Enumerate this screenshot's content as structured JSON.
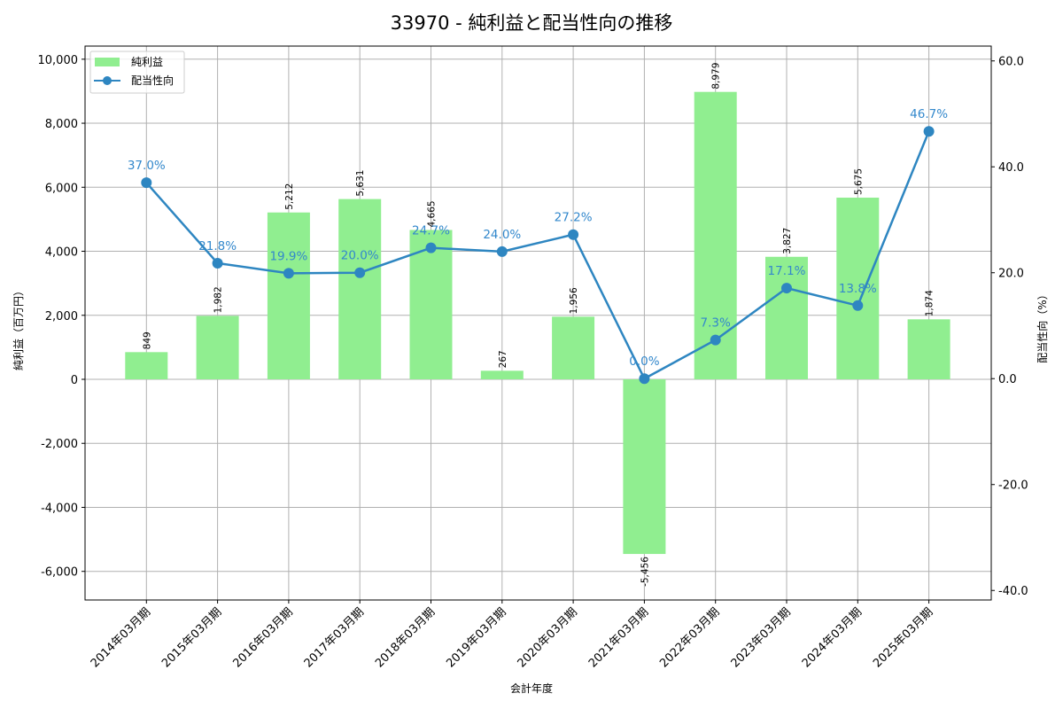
{
  "chart_data": {
    "type": "bar+line",
    "title": "33970 - 純利益と配当性向の推移",
    "xlabel": "会計年度",
    "ylabel": "純利益（百万円）",
    "y2label": "配当性向（%）",
    "categories": [
      "2014年03月期",
      "2015年03月期",
      "2016年03月期",
      "2017年03月期",
      "2018年03月期",
      "2019年03月期",
      "2020年03月期",
      "2021年03月期",
      "2022年03月期",
      "2023年03月期",
      "2024年03月期",
      "2025年03月期"
    ],
    "series": [
      {
        "name": "純利益",
        "type": "bar",
        "axis": "left",
        "color": "#90ee90",
        "values": [
          849,
          1982,
          5212,
          5631,
          4665,
          267,
          1956,
          -5456,
          8979,
          3827,
          5675,
          1874
        ],
        "labels": [
          "849",
          "1,982",
          "5,212",
          "5,631",
          "4,665",
          "267",
          "1,956",
          "-5,456",
          "8,979",
          "3,827",
          "5,675",
          "1,874"
        ]
      },
      {
        "name": "配当性向",
        "type": "line",
        "axis": "right",
        "color": "#2e86c1",
        "values": [
          37.0,
          21.8,
          19.9,
          20.0,
          24.7,
          24.0,
          27.2,
          0.0,
          7.3,
          17.1,
          13.8,
          46.7
        ],
        "labels": [
          "37.0%",
          "21.8%",
          "19.9%",
          "20.0%",
          "24.7%",
          "24.0%",
          "27.2%",
          "0.0%",
          "7.3%",
          "17.1%",
          "13.8%",
          "46.7%"
        ]
      }
    ],
    "ylim": [
      -6894,
      10410
    ],
    "y2lim": [
      -41.8,
      62.8
    ],
    "yticks": [
      -6000,
      -4000,
      -2000,
      0,
      2000,
      4000,
      6000,
      8000,
      10000
    ],
    "ytick_labels": [
      "-6,000",
      "-4,000",
      "-2,000",
      "0",
      "2,000",
      "4,000",
      "6,000",
      "8,000",
      "10,000"
    ],
    "y2ticks": [
      -40,
      -20,
      0,
      20,
      40,
      60
    ],
    "y2tick_labels": [
      "-40.0",
      "-20.0",
      "0.0",
      "20.0",
      "40.0",
      "60.0"
    ],
    "grid": true,
    "legend_position": "upper left",
    "legend": [
      "純利益",
      "配当性向"
    ]
  }
}
